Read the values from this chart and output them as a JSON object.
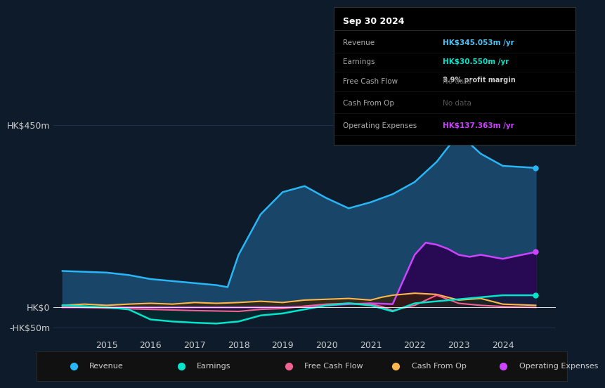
{
  "bg_color": "#0d1b2a",
  "plot_bg_color": "#0d1b2a",
  "grid_color": "#1e3050",
  "text_color": "#cccccc",
  "title_color": "#ffffff",
  "ylim": [
    -75,
    480
  ],
  "yticks": [
    -50,
    0,
    450
  ],
  "ytick_labels": [
    "-HK$50m",
    "HK$0",
    "HK$450m"
  ],
  "tooltip_bg": "#000000",
  "tooltip_title": "Sep 30 2024",
  "tooltip_rows": [
    {
      "label": "Revenue",
      "value": "HK$345.053m /yr",
      "value_color": "#4fc3f7",
      "extra": ""
    },
    {
      "label": "Earnings",
      "value": "HK$30.550m /yr",
      "value_color": "#00e5cc",
      "extra": "8.9% profit margin"
    },
    {
      "label": "Free Cash Flow",
      "value": "No data",
      "value_color": "#555555",
      "extra": ""
    },
    {
      "label": "Cash From Op",
      "value": "No data",
      "value_color": "#555555",
      "extra": ""
    },
    {
      "label": "Operating Expenses",
      "value": "HK$137.363m /yr",
      "value_color": "#cc44ff",
      "extra": ""
    }
  ],
  "series": {
    "revenue": {
      "color": "#29b6f6",
      "fill_color": "#1a4a70",
      "label": "Revenue",
      "x": [
        2014.0,
        2014.5,
        2015.0,
        2015.5,
        2016.0,
        2016.5,
        2017.0,
        2017.5,
        2017.75,
        2018.0,
        2018.5,
        2019.0,
        2019.5,
        2020.0,
        2020.5,
        2021.0,
        2021.5,
        2022.0,
        2022.5,
        2023.0,
        2023.5,
        2024.0,
        2024.75
      ],
      "y": [
        90,
        88,
        86,
        80,
        70,
        65,
        60,
        55,
        50,
        130,
        230,
        285,
        300,
        270,
        245,
        260,
        280,
        310,
        360,
        430,
        380,
        350,
        345
      ]
    },
    "earnings": {
      "color": "#00e5cc",
      "fill_color": "#003333",
      "label": "Earnings",
      "x": [
        2014.0,
        2014.5,
        2015.0,
        2015.5,
        2016.0,
        2016.5,
        2017.0,
        2017.5,
        2018.0,
        2018.5,
        2019.0,
        2019.5,
        2020.0,
        2020.5,
        2021.0,
        2021.5,
        2022.0,
        2022.5,
        2023.0,
        2023.5,
        2024.0,
        2024.75
      ],
      "y": [
        5,
        3,
        0,
        -5,
        -30,
        -35,
        -38,
        -40,
        -35,
        -20,
        -15,
        -5,
        5,
        10,
        5,
        -10,
        10,
        15,
        20,
        25,
        30,
        30
      ]
    },
    "free_cash_flow": {
      "color": "#f06292",
      "fill_color": "#4a0020",
      "label": "Free Cash Flow",
      "x": [
        2014.0,
        2015.0,
        2016.0,
        2017.0,
        2018.0,
        2018.5,
        2019.0,
        2019.5,
        2020.0,
        2020.5,
        2021.0,
        2021.25,
        2021.5,
        2022.0,
        2022.5,
        2023.0,
        2023.5,
        2024.0,
        2024.75
      ],
      "y": [
        2,
        -2,
        -5,
        -8,
        -10,
        -5,
        -3,
        3,
        8,
        10,
        8,
        2,
        -8,
        5,
        30,
        10,
        5,
        2,
        0
      ]
    },
    "cash_from_op": {
      "color": "#ffb74d",
      "fill_color": "#3a2000",
      "label": "Cash From Op",
      "x": [
        2014.0,
        2014.5,
        2015.0,
        2015.5,
        2016.0,
        2016.5,
        2017.0,
        2017.5,
        2018.0,
        2018.5,
        2019.0,
        2019.5,
        2020.0,
        2020.5,
        2021.0,
        2021.25,
        2021.5,
        2022.0,
        2022.5,
        2023.0,
        2023.5,
        2024.0,
        2024.75
      ],
      "y": [
        5,
        8,
        5,
        8,
        10,
        8,
        12,
        10,
        12,
        15,
        12,
        18,
        20,
        22,
        18,
        25,
        30,
        35,
        32,
        18,
        22,
        8,
        5
      ]
    },
    "operating_expenses": {
      "color": "#cc44ff",
      "fill_color": "#2a0050",
      "label": "Operating Expenses",
      "x": [
        2014.0,
        2015.0,
        2016.0,
        2017.0,
        2018.0,
        2019.0,
        2019.5,
        2020.0,
        2020.5,
        2021.0,
        2021.5,
        2022.0,
        2022.25,
        2022.5,
        2022.75,
        2023.0,
        2023.25,
        2023.5,
        2024.0,
        2024.75
      ],
      "y": [
        0,
        0,
        0,
        0,
        0,
        0,
        2,
        5,
        8,
        10,
        8,
        130,
        160,
        155,
        145,
        130,
        125,
        130,
        120,
        137
      ]
    }
  },
  "x_year_ticks": [
    2015,
    2016,
    2017,
    2018,
    2019,
    2020,
    2021,
    2022,
    2023,
    2024
  ],
  "legend_items": [
    {
      "label": "Revenue",
      "color": "#29b6f6"
    },
    {
      "label": "Earnings",
      "color": "#00e5cc"
    },
    {
      "label": "Free Cash Flow",
      "color": "#f06292"
    },
    {
      "label": "Cash From Op",
      "color": "#ffb74d"
    },
    {
      "label": "Operating Expenses",
      "color": "#cc44ff"
    }
  ]
}
